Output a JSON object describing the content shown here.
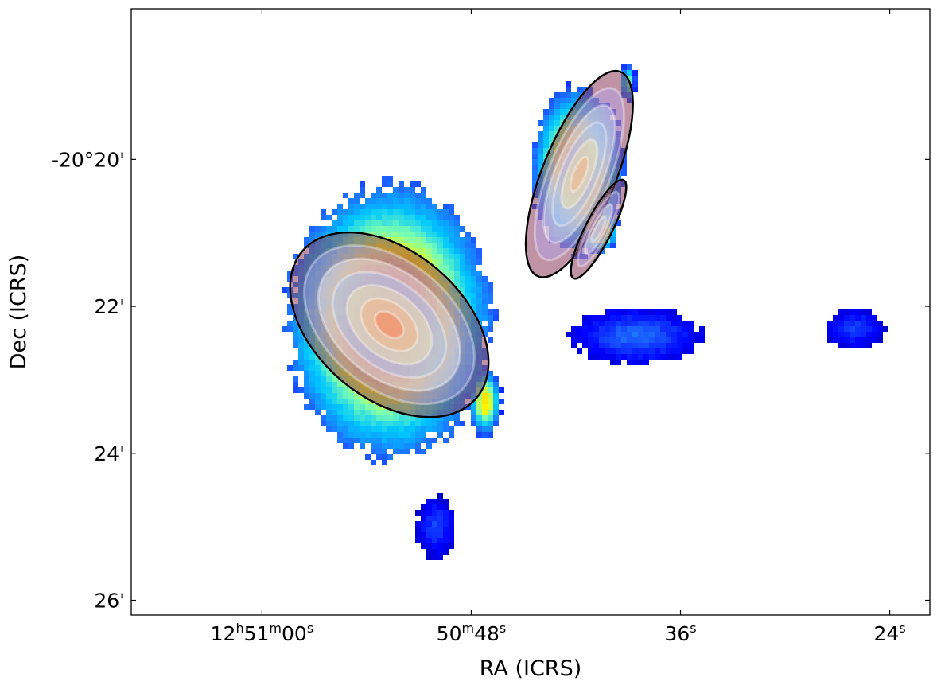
{
  "chart_data": {
    "type": "heatmap",
    "title": "",
    "xlabel": "RA (ICRS)",
    "ylabel": "Dec (ICRS)",
    "x_ticks": [
      {
        "ra_seconds_offset": 0,
        "parts": [
          [
            "12",
            ""
          ],
          [
            "h",
            "sup"
          ],
          [
            "51",
            ""
          ],
          [
            "m",
            "sup"
          ],
          [
            "00",
            ""
          ],
          [
            "s",
            "sup"
          ]
        ]
      },
      {
        "ra_seconds_offset": 12,
        "parts": [
          [
            "50",
            ""
          ],
          [
            "m",
            "sup"
          ],
          [
            "48",
            ""
          ],
          [
            "s",
            "sup"
          ]
        ]
      },
      {
        "ra_seconds_offset": 24,
        "parts": [
          [
            "36",
            ""
          ],
          [
            "s",
            "sup"
          ]
        ]
      },
      {
        "ra_seconds_offset": 36,
        "parts": [
          [
            "24",
            ""
          ],
          [
            "s",
            "sup"
          ]
        ]
      }
    ],
    "y_ticks": [
      {
        "dec_arcmin": -20,
        "label": "-20°20'"
      },
      {
        "dec_arcmin": -22,
        "label": "22'"
      },
      {
        "dec_arcmin": -24,
        "label": "24'"
      },
      {
        "dec_arcmin": -26,
        "label": "26'"
      }
    ],
    "xlim_ra_seconds_offset": [
      -7.5,
      38.3
    ],
    "ylim_dec_arcmin": [
      -26.2,
      -17.95
    ],
    "grid": false,
    "colormap": [
      "#00008f",
      "#0000ff",
      "#1e6bff",
      "#00c8ff",
      "#7dffaf",
      "#ffff00",
      "#ff9a00",
      "#ff3300",
      "#b00000"
    ],
    "sources": [
      {
        "name": "",
        "ra": 7.3,
        "dec": -22.2,
        "peak": 0.85,
        "extent_ra": 6.2,
        "extent_dec": 1.95
      },
      {
        "name": "",
        "ra": 12.8,
        "dec": -23.3,
        "peak": 0.62,
        "extent_ra": 1.0,
        "extent_dec": 0.5
      },
      {
        "name": "",
        "ra": 18.1,
        "dec": -20.15,
        "peak": 0.75,
        "extent_ra": 2.8,
        "extent_dec": 1.2
      },
      {
        "name": "",
        "ra": 19.3,
        "dec": -20.95,
        "peak": 0.7,
        "extent_ra": 1.2,
        "extent_dec": 0.35
      },
      {
        "name": "",
        "ra": 21.0,
        "dec": -18.95,
        "peak": 0.45,
        "extent_ra": 0.5,
        "extent_dec": 0.3
      },
      {
        "name": "",
        "ra": 21.5,
        "dec": -22.4,
        "peak": 0.2,
        "extent_ra": 4.0,
        "extent_dec": 0.4
      },
      {
        "name": "",
        "ra": 34.0,
        "dec": -22.3,
        "peak": 0.15,
        "extent_ra": 1.8,
        "extent_dec": 0.3
      },
      {
        "name": "",
        "ra": 10.0,
        "dec": -25.0,
        "peak": 0.15,
        "extent_ra": 1.2,
        "extent_dec": 0.45
      }
    ],
    "model_ellipses": [
      {
        "ra": 7.3,
        "dec": -22.25,
        "semi_major_arcmin": 1.55,
        "semi_minor_arcmin": 1.0,
        "pa_deg": 40,
        "rings": 7
      },
      {
        "ra": 18.2,
        "dec": -20.2,
        "semi_major_arcmin": 1.5,
        "semi_minor_arcmin": 0.5,
        "pa_deg": -68,
        "rings": 6
      },
      {
        "ra": 19.3,
        "dec": -20.95,
        "semi_major_arcmin": 0.75,
        "semi_minor_arcmin": 0.18,
        "pa_deg": -63,
        "rings": 4
      }
    ]
  }
}
